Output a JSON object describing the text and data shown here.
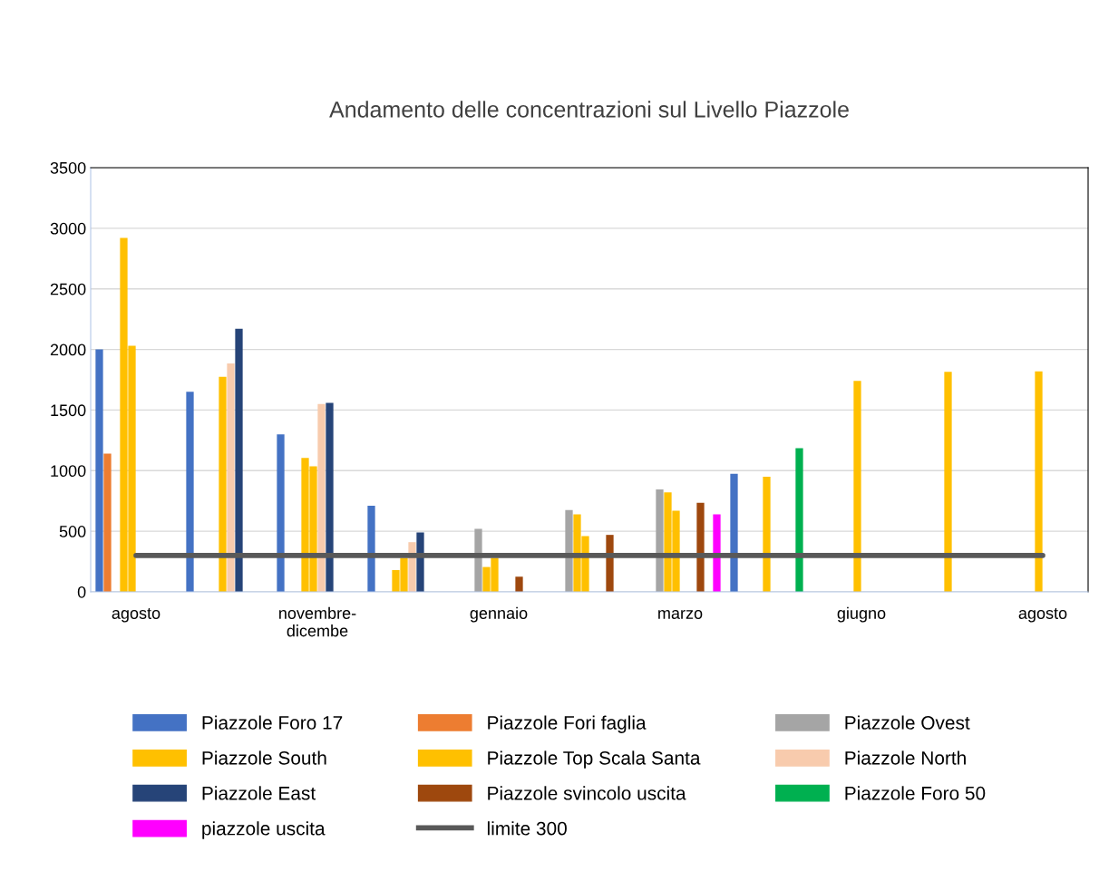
{
  "chart_data": {
    "type": "bar",
    "title": "Andamento delle concentrazioni sul Livello Piazzole",
    "categories": [
      "agosto",
      null,
      "novembre-\ndicembe",
      null,
      "gennaio",
      null,
      "marzo",
      null,
      "giugno",
      null,
      "agosto"
    ],
    "series": [
      {
        "name": "Piazzole Foro 17",
        "color": "#4472c4",
        "values": [
          2000,
          1650,
          1300,
          710,
          null,
          null,
          null,
          975,
          null,
          null,
          null
        ]
      },
      {
        "name": "Piazzole Fori faglia",
        "color": "#ed7d31",
        "values": [
          1140,
          null,
          null,
          null,
          null,
          null,
          null,
          null,
          null,
          null,
          null
        ]
      },
      {
        "name": "Piazzole Ovest",
        "color": "#a5a5a5",
        "values": [
          null,
          null,
          null,
          null,
          520,
          675,
          845,
          null,
          null,
          null,
          null
        ]
      },
      {
        "name": "Piazzole South",
        "color": "#ffc000",
        "values": [
          2920,
          null,
          1105,
          180,
          205,
          640,
          820,
          null,
          null,
          null,
          null
        ]
      },
      {
        "name": "Piazzole Top Scala Santa",
        "color": "#ffc000",
        "values": [
          2030,
          1775,
          1035,
          280,
          280,
          460,
          670,
          950,
          1740,
          1815,
          1820
        ]
      },
      {
        "name": "Piazzole North",
        "color": "#f8cbad",
        "values": [
          null,
          1885,
          1550,
          410,
          null,
          null,
          null,
          null,
          null,
          null,
          null
        ]
      },
      {
        "name": "Piazzole East",
        "color": "#264478",
        "values": [
          null,
          2170,
          1560,
          490,
          null,
          null,
          null,
          null,
          null,
          null,
          null
        ]
      },
      {
        "name": "Piazzole svincolo uscita",
        "color": "#9e480e",
        "values": [
          null,
          null,
          null,
          null,
          125,
          470,
          735,
          null,
          null,
          null,
          null
        ]
      },
      {
        "name": "Piazzole Foro 50",
        "color": "#00b050",
        "values": [
          null,
          null,
          null,
          null,
          null,
          null,
          null,
          1185,
          null,
          null,
          null
        ]
      },
      {
        "name": "piazzole uscita",
        "color": "#ff00ff",
        "values": [
          null,
          null,
          null,
          null,
          null,
          null,
          640,
          null,
          null,
          null,
          null
        ]
      },
      {
        "name": "limite 300",
        "type": "line",
        "color": "#595959",
        "values": [
          300,
          300,
          300,
          300,
          300,
          300,
          300,
          300,
          300,
          300,
          300
        ]
      }
    ],
    "ylim": [
      0,
      3500
    ],
    "yticks": [
      0,
      500,
      1000,
      1500,
      2000,
      2500,
      3000,
      3500
    ],
    "grid": "y",
    "legend": "bottom"
  }
}
